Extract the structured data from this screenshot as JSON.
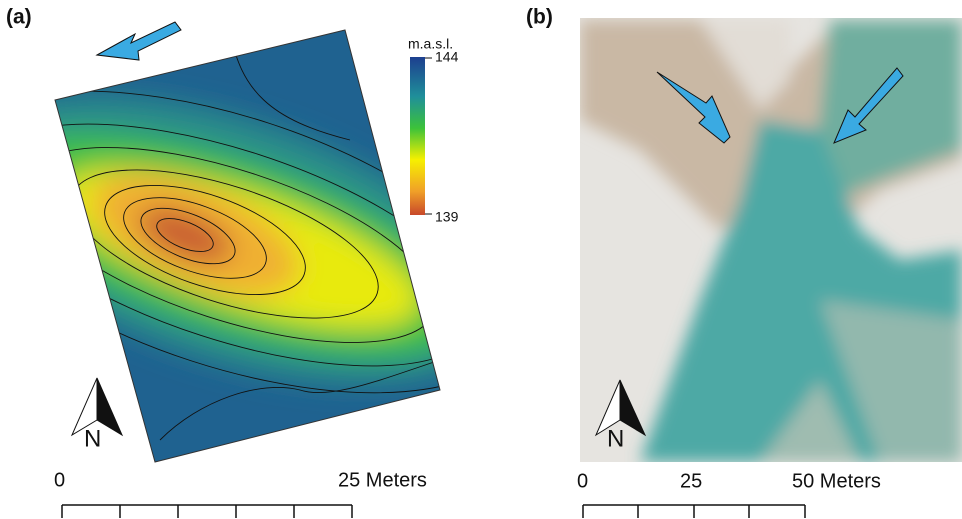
{
  "panel_a": {
    "label": "(a)",
    "legend": {
      "title": "m.a.s.l.",
      "max": 144,
      "min": 139
    },
    "north": "N",
    "scale_bar": {
      "start": "0",
      "end": "25 Meters"
    }
  },
  "panel_b": {
    "label": "(b)",
    "north": "N",
    "scale_bar": {
      "start": "0",
      "middle": "25",
      "end": "50 Meters"
    }
  }
}
